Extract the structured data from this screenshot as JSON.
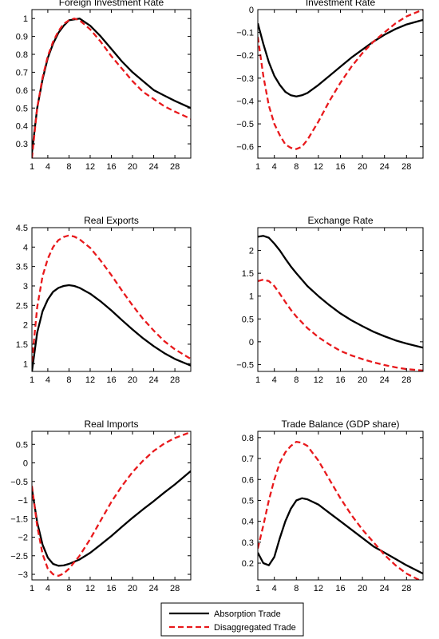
{
  "colors": {
    "absorption": "#000000",
    "disaggregated": "#e8191c",
    "axes": "#000000",
    "background": "#ffffff"
  },
  "legend": {
    "items": [
      {
        "label": "Absorption Trade",
        "style": "solid",
        "color": "#000000"
      },
      {
        "label": "Disaggregated Trade",
        "style": "dashed",
        "color": "#e8191c"
      }
    ],
    "placement": "bottom-center"
  },
  "chart_data": [
    {
      "type": "line",
      "title": "Foreign Investment Rate",
      "xlim": [
        1,
        31
      ],
      "ylim": [
        0.22,
        1.05
      ],
      "xticks": [
        1,
        4,
        8,
        12,
        16,
        20,
        24,
        28
      ],
      "yticks": [
        0.3,
        0.4,
        0.5,
        0.6,
        0.7,
        0.8,
        0.9,
        1
      ],
      "ytick_labels": [
        "0.3",
        "0.4",
        "0.5",
        "0.6",
        "0.7",
        "0.8",
        "0.9",
        "1"
      ],
      "grid": false,
      "series": [
        {
          "name": "Absorption Trade",
          "style": "solid",
          "x": [
            1,
            2,
            3,
            4,
            5,
            6,
            7,
            8,
            10,
            12,
            14,
            16,
            18,
            20,
            22,
            24,
            26,
            28,
            31
          ],
          "y": [
            0.25,
            0.5,
            0.66,
            0.78,
            0.86,
            0.92,
            0.96,
            0.99,
            1.0,
            0.96,
            0.9,
            0.83,
            0.76,
            0.7,
            0.65,
            0.6,
            0.57,
            0.54,
            0.5
          ]
        },
        {
          "name": "Disaggregated Trade",
          "style": "dashed",
          "x": [
            1,
            2,
            3,
            4,
            5,
            6,
            7,
            8,
            9,
            10,
            12,
            14,
            16,
            18,
            20,
            22,
            24,
            26,
            28,
            31
          ],
          "y": [
            0.22,
            0.5,
            0.67,
            0.79,
            0.87,
            0.93,
            0.97,
            0.99,
            1.0,
            0.99,
            0.94,
            0.87,
            0.79,
            0.72,
            0.65,
            0.59,
            0.55,
            0.51,
            0.48,
            0.44
          ]
        }
      ]
    },
    {
      "type": "line",
      "title": "Investment Rate",
      "xlim": [
        1,
        31
      ],
      "ylim": [
        -0.65,
        0.0
      ],
      "xticks": [
        1,
        4,
        8,
        12,
        16,
        20,
        24,
        28
      ],
      "yticks": [
        -0.6,
        -0.5,
        -0.4,
        -0.3,
        -0.2,
        -0.1,
        0
      ],
      "ytick_labels": [
        "−0.6",
        "−0.5",
        "−0.4",
        "−0.3",
        "−0.2",
        "−0.1",
        "0"
      ],
      "grid": false,
      "series": [
        {
          "name": "Absorption Trade",
          "style": "solid",
          "x": [
            1,
            2,
            3,
            4,
            5,
            6,
            7,
            8,
            9,
            10,
            12,
            14,
            16,
            18,
            20,
            22,
            24,
            26,
            28,
            31
          ],
          "y": [
            -0.06,
            -0.15,
            -0.23,
            -0.29,
            -0.33,
            -0.36,
            -0.375,
            -0.38,
            -0.375,
            -0.365,
            -0.33,
            -0.29,
            -0.25,
            -0.21,
            -0.175,
            -0.14,
            -0.11,
            -0.085,
            -0.065,
            -0.045
          ]
        },
        {
          "name": "Disaggregated Trade",
          "style": "dashed",
          "x": [
            1,
            2,
            3,
            4,
            5,
            6,
            7,
            8,
            9,
            10,
            12,
            14,
            16,
            18,
            20,
            22,
            24,
            26,
            28,
            31
          ],
          "y": [
            -0.12,
            -0.29,
            -0.42,
            -0.5,
            -0.55,
            -0.59,
            -0.605,
            -0.61,
            -0.6,
            -0.57,
            -0.49,
            -0.4,
            -0.32,
            -0.25,
            -0.19,
            -0.14,
            -0.1,
            -0.06,
            -0.03,
            0.0
          ]
        }
      ]
    },
    {
      "type": "line",
      "title": "Real Exports",
      "xlim": [
        1,
        31
      ],
      "ylim": [
        0.8,
        4.5
      ],
      "xticks": [
        1,
        4,
        8,
        12,
        16,
        20,
        24,
        28
      ],
      "yticks": [
        1,
        1.5,
        2,
        2.5,
        3,
        3.5,
        4,
        4.5
      ],
      "ytick_labels": [
        "1",
        "1.5",
        "2",
        "2.5",
        "3",
        "3.5",
        "4",
        "4.5"
      ],
      "grid": false,
      "series": [
        {
          "name": "Absorption Trade",
          "style": "solid",
          "x": [
            1,
            2,
            3,
            4,
            5,
            6,
            7,
            8,
            9,
            10,
            12,
            14,
            16,
            18,
            20,
            22,
            24,
            26,
            28,
            31
          ],
          "y": [
            0.8,
            1.8,
            2.35,
            2.65,
            2.85,
            2.95,
            3.0,
            3.02,
            3.0,
            2.95,
            2.8,
            2.6,
            2.37,
            2.12,
            1.88,
            1.65,
            1.45,
            1.27,
            1.12,
            0.95
          ]
        },
        {
          "name": "Disaggregated Trade",
          "style": "dashed",
          "x": [
            1,
            2,
            3,
            4,
            5,
            6,
            7,
            8,
            9,
            10,
            12,
            14,
            16,
            18,
            20,
            22,
            24,
            26,
            28,
            31
          ],
          "y": [
            1.05,
            2.45,
            3.25,
            3.7,
            4.0,
            4.18,
            4.26,
            4.3,
            4.27,
            4.2,
            3.98,
            3.65,
            3.28,
            2.88,
            2.5,
            2.15,
            1.85,
            1.58,
            1.37,
            1.12
          ]
        }
      ]
    },
    {
      "type": "line",
      "title": "Exchange Rate",
      "xlim": [
        1,
        31
      ],
      "ylim": [
        -0.65,
        2.5
      ],
      "xticks": [
        1,
        4,
        8,
        12,
        16,
        20,
        24,
        28
      ],
      "yticks": [
        -0.5,
        0,
        0.5,
        1,
        1.5,
        2
      ],
      "ytick_labels": [
        "−0.5",
        "0",
        "0.5",
        "1",
        "1.5",
        "2"
      ],
      "grid": false,
      "series": [
        {
          "name": "Absorption Trade",
          "style": "solid",
          "x": [
            1,
            2,
            3,
            4,
            5,
            6,
            7,
            8,
            10,
            12,
            14,
            16,
            18,
            20,
            22,
            24,
            26,
            28,
            31
          ],
          "y": [
            2.3,
            2.32,
            2.28,
            2.15,
            2.0,
            1.82,
            1.65,
            1.5,
            1.22,
            1.0,
            0.8,
            0.62,
            0.47,
            0.34,
            0.22,
            0.12,
            0.03,
            -0.04,
            -0.13
          ]
        },
        {
          "name": "Disaggregated Trade",
          "style": "dashed",
          "x": [
            1,
            2,
            3,
            4,
            5,
            6,
            7,
            8,
            10,
            12,
            14,
            16,
            18,
            20,
            22,
            24,
            26,
            28,
            31
          ],
          "y": [
            1.33,
            1.36,
            1.33,
            1.22,
            1.05,
            0.87,
            0.7,
            0.55,
            0.3,
            0.1,
            -0.06,
            -0.2,
            -0.3,
            -0.38,
            -0.45,
            -0.51,
            -0.56,
            -0.6,
            -0.63
          ]
        }
      ]
    },
    {
      "type": "line",
      "title": "Real Imports",
      "xlim": [
        1,
        31
      ],
      "ylim": [
        -3.15,
        0.85
      ],
      "xticks": [
        1,
        4,
        8,
        12,
        16,
        20,
        24,
        28
      ],
      "yticks": [
        -3,
        -2.5,
        -2,
        -1.5,
        -1,
        -0.5,
        0,
        0.5
      ],
      "ytick_labels": [
        "−3",
        "−2.5",
        "−2",
        "−1.5",
        "−1",
        "−0.5",
        "0",
        "0.5"
      ],
      "grid": false,
      "series": [
        {
          "name": "Absorption Trade",
          "style": "solid",
          "x": [
            1,
            2,
            3,
            4,
            5,
            6,
            7,
            8,
            10,
            12,
            14,
            16,
            18,
            20,
            22,
            24,
            26,
            28,
            31
          ],
          "y": [
            -0.7,
            -1.6,
            -2.2,
            -2.55,
            -2.72,
            -2.77,
            -2.76,
            -2.72,
            -2.6,
            -2.42,
            -2.2,
            -1.97,
            -1.72,
            -1.48,
            -1.25,
            -1.03,
            -0.8,
            -0.58,
            -0.22
          ]
        },
        {
          "name": "Disaggregated Trade",
          "style": "dashed",
          "x": [
            1,
            2,
            3,
            4,
            5,
            6,
            7,
            8,
            10,
            12,
            14,
            16,
            18,
            20,
            22,
            24,
            26,
            28,
            31
          ],
          "y": [
            -0.62,
            -1.7,
            -2.45,
            -2.85,
            -3.0,
            -3.04,
            -2.98,
            -2.85,
            -2.5,
            -2.05,
            -1.55,
            -1.05,
            -0.62,
            -0.25,
            0.06,
            0.32,
            0.52,
            0.67,
            0.83
          ]
        }
      ]
    },
    {
      "type": "line",
      "title": "Trade Balance (GDP share)",
      "xlim": [
        1,
        31
      ],
      "ylim": [
        0.12,
        0.83
      ],
      "xticks": [
        1,
        4,
        8,
        12,
        16,
        20,
        24,
        28
      ],
      "yticks": [
        0.2,
        0.3,
        0.4,
        0.5,
        0.6,
        0.7,
        0.8
      ],
      "ytick_labels": [
        "0.2",
        "0.3",
        "0.4",
        "0.5",
        "0.6",
        "0.7",
        "0.8"
      ],
      "grid": false,
      "series": [
        {
          "name": "Absorption Trade",
          "style": "solid",
          "x": [
            1,
            2,
            3,
            4,
            5,
            6,
            7,
            8,
            9,
            10,
            12,
            14,
            16,
            18,
            20,
            22,
            24,
            26,
            28,
            31
          ],
          "y": [
            0.25,
            0.2,
            0.19,
            0.23,
            0.32,
            0.4,
            0.46,
            0.5,
            0.51,
            0.505,
            0.48,
            0.44,
            0.4,
            0.36,
            0.32,
            0.28,
            0.25,
            0.22,
            0.19,
            0.15
          ]
        },
        {
          "name": "Disaggregated Trade",
          "style": "dashed",
          "x": [
            1,
            2,
            3,
            4,
            5,
            6,
            7,
            8,
            9,
            10,
            12,
            14,
            16,
            18,
            20,
            22,
            24,
            26,
            28,
            31
          ],
          "y": [
            0.27,
            0.38,
            0.5,
            0.6,
            0.68,
            0.73,
            0.76,
            0.78,
            0.775,
            0.76,
            0.69,
            0.6,
            0.51,
            0.43,
            0.36,
            0.3,
            0.24,
            0.19,
            0.15,
            0.11
          ]
        }
      ]
    }
  ]
}
